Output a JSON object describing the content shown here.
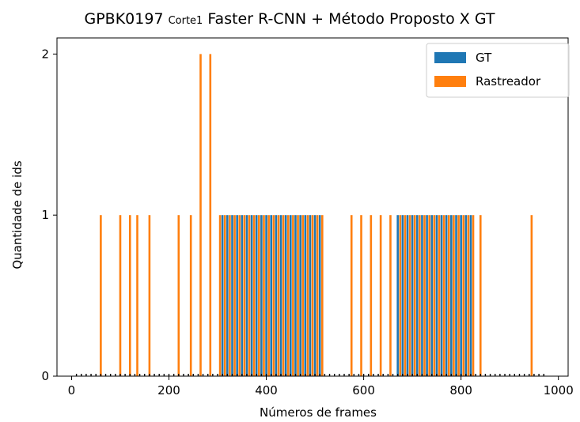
{
  "chart_data": {
    "type": "bar",
    "title": {
      "prefix": "GPBK0197",
      "small": "Corte1",
      "main": "Faster R-CNN + Método Proposto X GT"
    },
    "xlabel": "Números de frames",
    "ylabel": "Quantidade de ids",
    "xlim": [
      -30,
      1020
    ],
    "ylim": [
      0,
      2.1
    ],
    "xticks": [
      0,
      200,
      400,
      600,
      800,
      1000
    ],
    "yticks": [
      0,
      1,
      2
    ],
    "legend": {
      "position": "top-right"
    },
    "series": [
      {
        "name": "GT",
        "color": "#1f77b4",
        "x": [
          310,
          320,
          330,
          340,
          350,
          360,
          370,
          380,
          390,
          400,
          410,
          420,
          430,
          440,
          450,
          460,
          470,
          480,
          490,
          500,
          510,
          670,
          680,
          690,
          700,
          710,
          720,
          730,
          740,
          750,
          760,
          770,
          780,
          790,
          800,
          810,
          820
        ],
        "values": [
          1,
          1,
          1,
          1,
          1,
          1,
          1,
          1,
          1,
          1,
          1,
          1,
          1,
          1,
          1,
          1,
          1,
          1,
          1,
          1,
          1,
          1,
          1,
          1,
          1,
          1,
          1,
          1,
          1,
          1,
          1,
          1,
          1,
          1,
          1,
          1,
          1
        ]
      },
      {
        "name": "Rastreador",
        "color": "#ff7f0e",
        "x": [
          60,
          100,
          120,
          135,
          160,
          220,
          245,
          265,
          285,
          305,
          315,
          325,
          335,
          345,
          355,
          365,
          375,
          385,
          395,
          405,
          415,
          425,
          435,
          445,
          455,
          465,
          475,
          485,
          495,
          505,
          515,
          575,
          595,
          615,
          635,
          655,
          675,
          685,
          695,
          705,
          715,
          725,
          735,
          745,
          755,
          765,
          775,
          785,
          795,
          805,
          815,
          825,
          840,
          945
        ],
        "values": [
          1,
          1,
          1,
          1,
          1,
          1,
          1,
          2,
          2,
          1,
          1,
          1,
          1,
          1,
          1,
          1,
          1,
          1,
          1,
          1,
          1,
          1,
          1,
          1,
          1,
          1,
          1,
          1,
          1,
          1,
          1,
          1,
          1,
          1,
          1,
          1,
          1,
          1,
          1,
          1,
          1,
          1,
          1,
          1,
          1,
          1,
          1,
          1,
          1,
          1,
          1,
          1,
          1,
          1
        ]
      }
    ]
  }
}
